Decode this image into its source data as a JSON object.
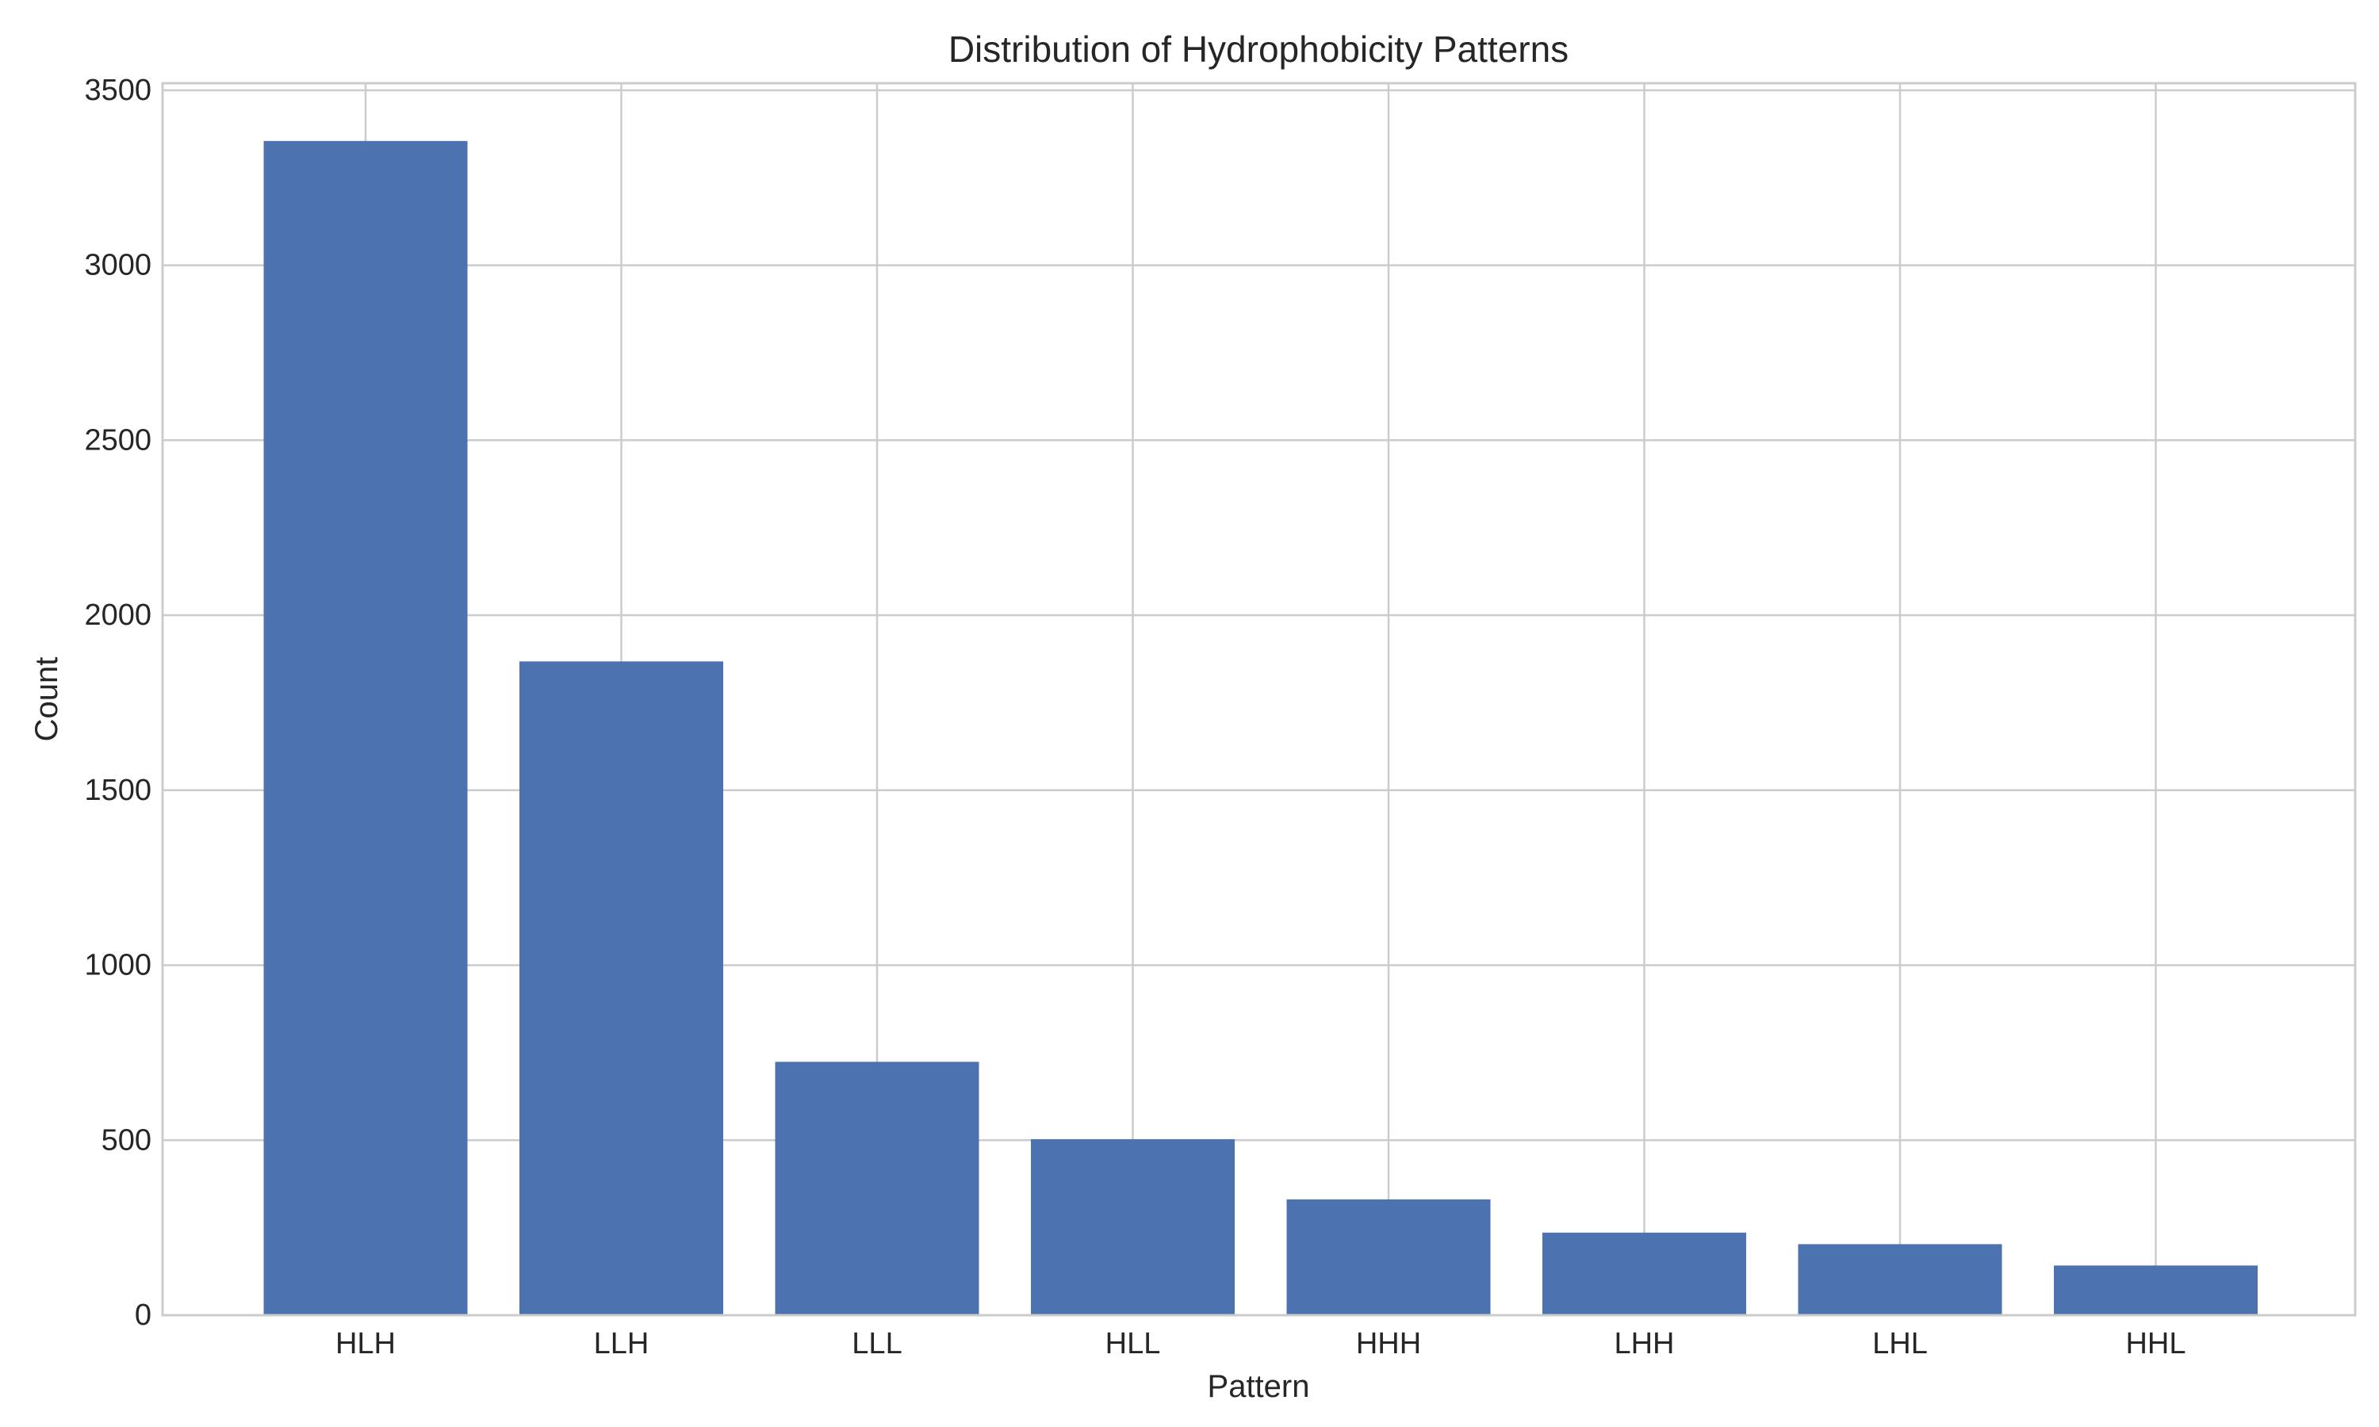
{
  "chart_data": {
    "type": "bar",
    "title": "Distribution of Hydrophobicity Patterns",
    "xlabel": "Pattern",
    "ylabel": "Count",
    "categories": [
      "HLH",
      "LLH",
      "LLL",
      "HLL",
      "HHH",
      "LHH",
      "LHL",
      "HHL"
    ],
    "values": [
      3355,
      1868,
      724,
      503,
      331,
      236,
      203,
      142
    ],
    "ylim": [
      0,
      3520
    ],
    "yticks": [
      0,
      500,
      1000,
      1500,
      2000,
      2500,
      3000,
      3500
    ],
    "grid": true,
    "legend": "none",
    "colors": {
      "bar": "#4c72b0",
      "grid": "#cccccc",
      "axes_edge": "#cccccc",
      "text": "#262626"
    }
  }
}
